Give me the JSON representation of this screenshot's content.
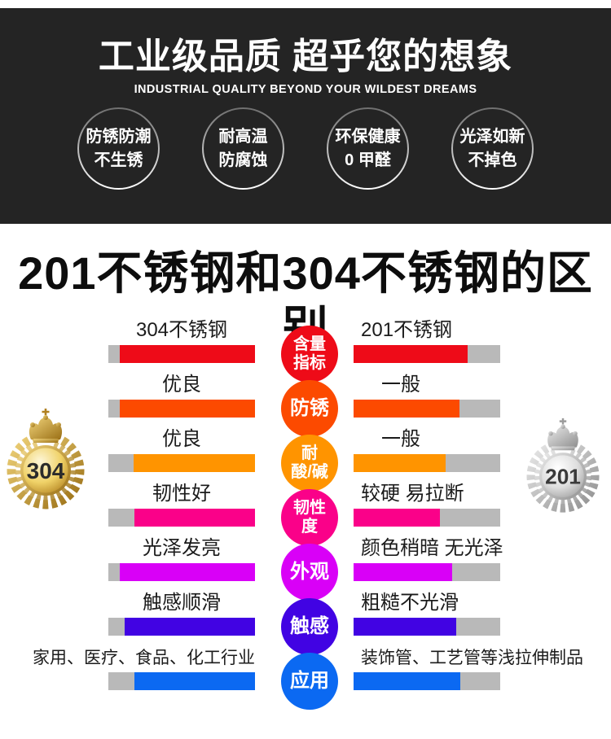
{
  "header": {
    "title": "工业级品质 超乎您的想象",
    "subtitle": "INDUSTRIAL QUALITY BEYOND YOUR WILDEST DREAMS",
    "background_color": "#242424",
    "features": [
      {
        "line1": "防锈防潮",
        "line2": "不生锈"
      },
      {
        "line1": "耐高温",
        "line2": "防腐蚀"
      },
      {
        "line1": "环保健康",
        "line2": "0 甲醛"
      },
      {
        "line1": "光泽如新",
        "line2": "不掉色"
      }
    ]
  },
  "section_title": "201不锈钢和304不锈钢的区别",
  "medals": {
    "left": {
      "label": "304",
      "type": "gold"
    },
    "right": {
      "label": "201",
      "type": "silver"
    }
  },
  "comparison": {
    "bar_track_color": "#b9b9b9",
    "rows": [
      {
        "category": "含量指标",
        "center_lines": [
          "含量",
          "指标"
        ],
        "color": "#ee0b18",
        "left": "304不锈钢",
        "right": "201不锈钢",
        "left_fill": 0.92,
        "right_fill": 0.78
      },
      {
        "category": "防锈",
        "center_lines": [
          "防锈"
        ],
        "color": "#fc4a00",
        "left": "优良",
        "right": "一般",
        "left_fill": 0.92,
        "right_fill": 0.72
      },
      {
        "category": "耐酸/碱",
        "center_lines": [
          "耐",
          "酸/碱"
        ],
        "color": "#ff9400",
        "left": "优良",
        "right": "一般",
        "left_fill": 0.83,
        "right_fill": 0.63
      },
      {
        "category": "韧性度",
        "center_lines": [
          "韧性",
          "度"
        ],
        "color": "#fa0189",
        "left": "韧性好",
        "right": "较硬 易拉断",
        "left_fill": 0.82,
        "right_fill": 0.59
      },
      {
        "category": "外观",
        "center_lines": [
          "外观"
        ],
        "color": "#d900f7",
        "left": "光泽发亮",
        "right": "颜色稍暗 无光泽",
        "left_fill": 0.92,
        "right_fill": 0.67
      },
      {
        "category": "触感",
        "center_lines": [
          "触感"
        ],
        "color": "#4103e3",
        "left": "触感顺滑",
        "right": "粗糙不光滑",
        "left_fill": 0.89,
        "right_fill": 0.7
      },
      {
        "category": "应用",
        "center_lines": [
          "应用"
        ],
        "color": "#0b69f2",
        "left": "家用、医疗、食品、化工行业",
        "right": "装饰管、工艺管等浅拉伸制品",
        "left_fill": 0.82,
        "right_fill": 0.73
      }
    ]
  },
  "chart_data": {
    "type": "table",
    "title": "201不锈钢和304不锈钢的区别",
    "categories": [
      "含量指标",
      "防锈",
      "耐酸/碱",
      "韧性度",
      "外观",
      "触感",
      "应用"
    ],
    "series": [
      {
        "name": "304不锈钢",
        "values": [
          "304不锈钢",
          "优良",
          "优良",
          "韧性好",
          "光泽发亮",
          "触感顺滑",
          "家用、医疗、食品、化工行业"
        ],
        "bar_fill": [
          0.92,
          0.92,
          0.83,
          0.82,
          0.92,
          0.89,
          0.82
        ]
      },
      {
        "name": "201不锈钢",
        "values": [
          "201不锈钢",
          "一般",
          "一般",
          "较硬 易拉断",
          "颜色稍暗 无光泽",
          "粗糙不光滑",
          "装饰管、工艺管等浅拉伸制品"
        ],
        "bar_fill": [
          0.78,
          0.72,
          0.63,
          0.59,
          0.67,
          0.7,
          0.73
        ]
      }
    ],
    "row_colors": [
      "#ee0b18",
      "#fc4a00",
      "#ff9400",
      "#fa0189",
      "#d900f7",
      "#4103e3",
      "#0b69f2"
    ],
    "layout": {
      "left_bars_anchor": "right",
      "right_bars_anchor": "left",
      "track_color": "#b9b9b9"
    }
  }
}
